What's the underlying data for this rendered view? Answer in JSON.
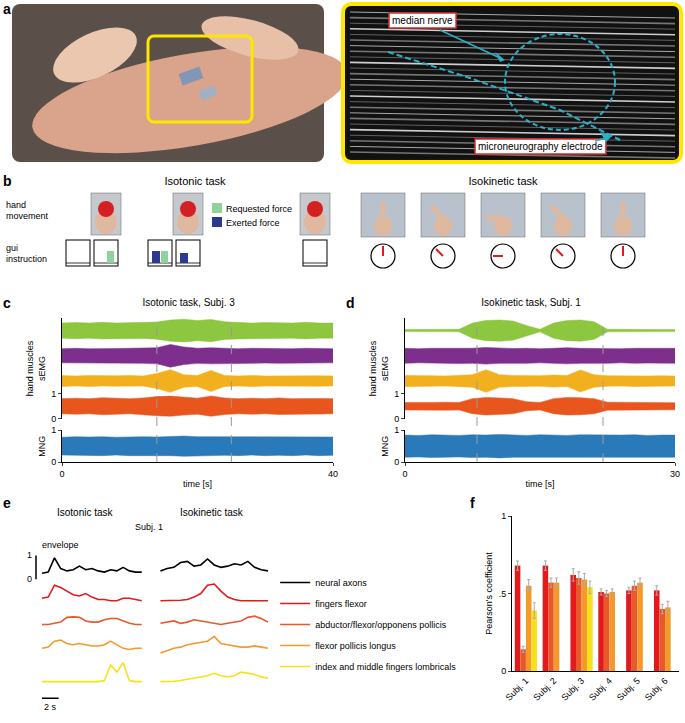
{
  "figure": {
    "a": {
      "letter": "a",
      "ultrasound_labels": [
        "median nerve",
        "microneurography electrode"
      ]
    },
    "b": {
      "letter": "b",
      "isotonic": {
        "title": "Isotonic task",
        "row_labels": [
          [
            "hand",
            "movement"
          ],
          [
            "gui",
            "instruction"
          ]
        ],
        "legend": [
          {
            "name": "Requested force",
            "color": "#8ed39a"
          },
          {
            "name": "Exerted force",
            "color": "#2b3990"
          }
        ],
        "gui_frames": [
          {
            "photo": false,
            "requested": 0,
            "exerted": 0
          },
          {
            "photo": true,
            "requested": 0.6,
            "exerted": 0
          },
          {
            "photo": false,
            "requested": 0.6,
            "exerted": 0.6
          },
          {
            "photo": true,
            "requested": 0,
            "exerted": 0.5
          },
          {
            "photo": true,
            "requested": 0,
            "exerted": 0
          }
        ]
      },
      "isokinetic": {
        "title": "Isokinetic task",
        "dial_angles": [
          0,
          -45,
          -90,
          -45,
          0
        ],
        "color": "#e31a1c"
      }
    }
  },
  "chart_data": [
    {
      "panel": "c",
      "letter": "c",
      "type": "signal",
      "title": "Isotonic task, Subj. 3",
      "xlabel": "time [s]",
      "ylabel": [
        "hand muscles",
        "sEMG"
      ],
      "y2label": "MNG",
      "x": [
        0,
        2,
        4,
        6,
        8,
        10,
        12,
        14,
        16,
        18,
        20,
        22,
        24,
        26,
        28,
        30,
        32,
        34,
        36,
        38,
        40
      ],
      "xlim": [
        0,
        40
      ],
      "xticks": [
        0,
        40
      ],
      "ylim": [
        0,
        4
      ],
      "yticks": [
        0,
        1
      ],
      "y2lim": [
        0,
        1
      ],
      "y2ticks": [
        0,
        1
      ],
      "marked_times": [
        14,
        25
      ],
      "series": [
        {
          "color": "#8dc63f",
          "axis": "y",
          "amplitude": [
            0.3,
            0.32,
            0.3,
            0.33,
            0.3,
            0.32,
            0.31,
            0.34,
            0.42,
            0.45,
            0.4,
            0.44,
            0.35,
            0.33,
            0.3,
            0.32,
            0.31,
            0.3,
            0.33,
            0.3,
            0.3
          ]
        },
        {
          "color": "#7e2f8e",
          "axis": "y",
          "amplitude": [
            0.28,
            0.3,
            0.28,
            0.3,
            0.29,
            0.3,
            0.3,
            0.32,
            0.45,
            0.35,
            0.3,
            0.32,
            0.3,
            0.28,
            0.3,
            0.29,
            0.3,
            0.28,
            0.3,
            0.29,
            0.28
          ]
        },
        {
          "color": "#f2b01e",
          "axis": "y",
          "amplitude": [
            0.22,
            0.2,
            0.22,
            0.2,
            0.21,
            0.22,
            0.2,
            0.3,
            0.45,
            0.25,
            0.22,
            0.42,
            0.22,
            0.2,
            0.22,
            0.2,
            0.21,
            0.22,
            0.2,
            0.21,
            0.2
          ]
        },
        {
          "color": "#e8561e",
          "axis": "y",
          "amplitude": [
            0.3,
            0.32,
            0.3,
            0.34,
            0.32,
            0.3,
            0.33,
            0.38,
            0.4,
            0.35,
            0.32,
            0.4,
            0.33,
            0.3,
            0.32,
            0.3,
            0.33,
            0.3,
            0.32,
            0.31,
            0.3
          ]
        },
        {
          "color": "#2a7ab9",
          "axis": "y2",
          "amplitude": [
            0.28,
            0.3,
            0.29,
            0.3,
            0.28,
            0.3,
            0.3,
            0.29,
            0.3,
            0.32,
            0.3,
            0.3,
            0.29,
            0.3,
            0.28,
            0.3,
            0.29,
            0.3,
            0.28,
            0.3,
            0.29
          ]
        }
      ]
    },
    {
      "panel": "d",
      "letter": "d",
      "type": "signal",
      "title": "Isokinetic task, Subj. 1",
      "xlabel": "time [s]",
      "ylabel": [
        "hand muscles",
        "sEMG"
      ],
      "y2label": "MNG",
      "x": [
        0,
        1.5,
        3,
        4.5,
        6,
        7.5,
        9,
        10.5,
        12,
        13.5,
        15,
        16.5,
        18,
        19.5,
        21,
        22.5,
        24,
        25.5,
        27,
        28.5,
        30
      ],
      "xlim": [
        0,
        30
      ],
      "xticks": [
        0,
        30
      ],
      "ylim": [
        0,
        4
      ],
      "yticks": [
        0,
        1
      ],
      "y2lim": [
        0,
        1
      ],
      "y2ticks": [
        0,
        1
      ],
      "marked_times": [
        8,
        22
      ],
      "series": [
        {
          "color": "#8dc63f",
          "axis": "y",
          "amplitude": [
            0.04,
            0.04,
            0.05,
            0.04,
            0.05,
            0.3,
            0.4,
            0.42,
            0.38,
            0.2,
            0.05,
            0.3,
            0.4,
            0.42,
            0.35,
            0.05,
            0.04,
            0.05,
            0.04,
            0.04,
            0.04
          ]
        },
        {
          "color": "#7e2f8e",
          "axis": "y",
          "amplitude": [
            0.3,
            0.28,
            0.3,
            0.29,
            0.31,
            0.3,
            0.33,
            0.3,
            0.29,
            0.3,
            0.28,
            0.3,
            0.32,
            0.3,
            0.29,
            0.3,
            0.28,
            0.3,
            0.29,
            0.28,
            0.3
          ]
        },
        {
          "color": "#f2b01e",
          "axis": "y",
          "amplitude": [
            0.22,
            0.2,
            0.21,
            0.2,
            0.22,
            0.25,
            0.45,
            0.25,
            0.22,
            0.2,
            0.21,
            0.24,
            0.22,
            0.44,
            0.25,
            0.21,
            0.2,
            0.22,
            0.2,
            0.21,
            0.2
          ]
        },
        {
          "color": "#e8561e",
          "axis": "y",
          "amplitude": [
            0.15,
            0.14,
            0.15,
            0.16,
            0.15,
            0.3,
            0.35,
            0.33,
            0.3,
            0.18,
            0.15,
            0.3,
            0.35,
            0.34,
            0.3,
            0.16,
            0.15,
            0.14,
            0.15,
            0.15,
            0.14
          ]
        },
        {
          "color": "#2a7ab9",
          "axis": "y2",
          "amplitude": [
            0.35,
            0.34,
            0.36,
            0.35,
            0.34,
            0.36,
            0.35,
            0.37,
            0.35,
            0.34,
            0.36,
            0.35,
            0.34,
            0.36,
            0.35,
            0.34,
            0.35,
            0.36,
            0.34,
            0.35,
            0.35
          ]
        }
      ]
    },
    {
      "panel": "e",
      "letter": "e",
      "type": "line",
      "title": "Subj. 1",
      "tick_labels": false,
      "legend": "right",
      "series": [
        {
          "name": "neural axons",
          "color": "#000000"
        },
        {
          "name": "fingers flexor",
          "color": "#e31a1c"
        },
        {
          "name": "abductor/flexor/opponens pollicis",
          "color": "#e8582a"
        },
        {
          "name": "flexor pollicis longus",
          "color": "#f39a2b"
        },
        {
          "name": "index and middle fingers lombricals",
          "color": "#f7e11b"
        }
      ],
      "tasks": [
        {
          "title": "Isotonic task",
          "x": [
            0,
            0.75,
            1.5,
            2.25,
            3,
            3.75,
            4.5,
            5.25,
            6,
            6.75,
            7.5,
            8.25,
            9,
            9.75,
            10.5,
            11.25,
            12
          ],
          "values": [
            [
              0.25,
              0.3,
              0.9,
              0.45,
              0.35,
              0.4,
              0.55,
              0.4,
              0.45,
              0.35,
              0.3,
              0.4,
              0.35,
              0.5,
              0.35,
              0.3,
              0.3
            ],
            [
              0.3,
              0.35,
              0.85,
              0.75,
              0.6,
              0.45,
              0.4,
              0.5,
              0.35,
              0.25,
              0.25,
              0.2,
              0.2,
              0.3,
              0.3,
              0.25,
              0.2
            ],
            [
              0.3,
              0.3,
              0.35,
              0.4,
              0.6,
              0.62,
              0.6,
              0.45,
              0.4,
              0.4,
              0.5,
              0.55,
              0.55,
              0.45,
              0.35,
              0.3,
              0.3
            ],
            [
              0.4,
              0.45,
              0.7,
              0.75,
              0.6,
              0.55,
              0.6,
              0.55,
              0.5,
              0.5,
              0.55,
              0.7,
              0.55,
              0.4,
              0.35,
              0.4,
              0.4
            ],
            [
              0.1,
              0.1,
              0.1,
              0.1,
              0.1,
              0.1,
              0.1,
              0.1,
              0.1,
              0.1,
              0.15,
              0.8,
              0.5,
              0.9,
              0.15,
              0.1,
              0.1
            ]
          ]
        },
        {
          "title": "Isokinetic task",
          "x": [
            0,
            0.75,
            1.5,
            2.25,
            3,
            3.75,
            4.5,
            5.25,
            6,
            6.75,
            7.5,
            8.25,
            9,
            9.75,
            10.5,
            11.25,
            12
          ],
          "values": [
            [
              0.35,
              0.45,
              0.5,
              0.7,
              0.75,
              0.55,
              0.6,
              0.85,
              0.6,
              0.5,
              0.55,
              0.65,
              0.6,
              0.75,
              0.5,
              0.4,
              0.35
            ],
            [
              0.2,
              0.2,
              0.2,
              0.22,
              0.25,
              0.35,
              0.5,
              0.85,
              0.9,
              0.6,
              0.35,
              0.25,
              0.2,
              0.2,
              0.22,
              0.2,
              0.2
            ],
            [
              0.35,
              0.4,
              0.45,
              0.35,
              0.4,
              0.5,
              0.45,
              0.4,
              0.35,
              0.3,
              0.35,
              0.4,
              0.45,
              0.6,
              0.65,
              0.55,
              0.4
            ],
            [
              0.2,
              0.3,
              0.4,
              0.45,
              0.55,
              0.6,
              0.65,
              0.7,
              0.9,
              0.6,
              0.55,
              0.5,
              0.45,
              0.45,
              0.5,
              0.45,
              0.4
            ],
            [
              0.1,
              0.1,
              0.12,
              0.15,
              0.2,
              0.25,
              0.3,
              0.35,
              0.45,
              0.35,
              0.3,
              0.35,
              0.5,
              0.45,
              0.4,
              0.3,
              0.25
            ]
          ]
        }
      ],
      "scale_bars": {
        "y": {
          "label": "envelope",
          "ticks": [
            0,
            1
          ]
        },
        "x": {
          "value": 2,
          "label": "2 s"
        }
      }
    },
    {
      "panel": "f",
      "letter": "f",
      "type": "bar",
      "ylabel": "Pearson's coefficient",
      "categories": [
        "Subj. 1",
        "Subj. 2",
        "Subj. 3",
        "Subj. 4",
        "Subj. 5",
        "Subj. 6"
      ],
      "ylim": [
        0,
        1
      ],
      "yticks": [
        0,
        {
          "value": 0.5,
          "label": ".5"
        },
        1
      ],
      "series": [
        {
          "color": "#e31a1c",
          "values": [
            0.68,
            0.68,
            0.62,
            0.51,
            0.52,
            0.52
          ],
          "errors": [
            0.03,
            0.03,
            0.04,
            0.02,
            0.02,
            0.03
          ]
        },
        {
          "color": "#e8582a",
          "values": [
            0.14,
            0.57,
            0.6,
            0.5,
            0.55,
            0.4
          ],
          "errors": [
            0.02,
            0.03,
            0.04,
            0.02,
            0.03,
            0.03
          ]
        },
        {
          "color": "#f39a2b",
          "values": [
            0.55,
            0.57,
            0.59,
            0.51,
            0.57,
            0.41
          ],
          "errors": [
            0.04,
            0.03,
            0.04,
            0.02,
            0.03,
            0.04
          ]
        },
        {
          "color": "#f7e11b",
          "values": [
            0.39,
            null,
            0.54,
            null,
            null,
            null
          ],
          "errors": [
            0.05,
            null,
            0.04,
            null,
            null,
            null
          ]
        }
      ]
    }
  ]
}
